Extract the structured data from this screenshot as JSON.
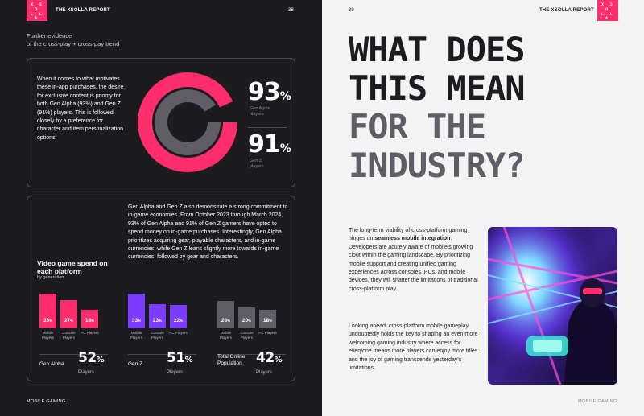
{
  "left_page": {
    "logo_letters": [
      "X",
      "S",
      "O",
      "L",
      "L",
      "A"
    ],
    "header_title": "THE XSOLLA REPORT",
    "page_number": "38",
    "section_heading_line1": "Further evidence",
    "section_heading_line2": "of the cross-play + cross-pay trend",
    "intro_text": "When it comes to what motivates these in-app purchases, the desire for exclusive content is priority for both Gen Alpha (93%) and Gen Z (91%) players. This is followed closely by a preference for character and item personalization options.",
    "stat_gen_alpha": {
      "value": "93",
      "unit": "%",
      "label_line1": "Gen Alpha",
      "label_line2": "players"
    },
    "stat_gen_z": {
      "value": "91",
      "unit": "%",
      "label_line1": "Gen Z",
      "label_line2": "players"
    },
    "mid_text": "Gen Alpha and Gen Z also demonstrate a strong commitment to in-game economies. From October 2023 through March 2024, 93% of Gen Alpha and 91% of Gen Z gamers have opted to spend money on in-game purchases. Interestingly, Gen Alpha prioritizes acquiring gear, playable characters, and in-game currencies, while Gen Z leans slightly more towards in-game currencies, followed by gear and characters.",
    "footer": "MOBILE GAMING"
  },
  "chart_data": [
    {
      "type": "pie",
      "values": [
        93,
        91
      ],
      "labels": [
        "Gen Alpha players",
        "Gen Z players"
      ],
      "colors": [
        "#ff2d6b",
        "#5f5e66"
      ]
    },
    {
      "type": "bar",
      "title": "Video game spend on each platform",
      "subtitle": "by generation",
      "categories": [
        "Mobile Players",
        "Console Players",
        "PC Players"
      ],
      "series": [
        {
          "name": "Gen Alpha",
          "values": [
            33,
            27,
            18
          ],
          "total": "52",
          "color": "#ff2d6b"
        },
        {
          "name": "Gen Z",
          "values": [
            33,
            23,
            22
          ],
          "total": "51",
          "color": "#7b3cff"
        },
        {
          "name": "Total Online Population",
          "values": [
            26,
            20,
            18
          ],
          "total": "42",
          "color": "#5f5e66"
        }
      ],
      "total_sub": "Players",
      "unit": "%"
    }
  ],
  "right_page": {
    "logo_letters": [
      "X",
      "S",
      "O",
      "L",
      "L",
      "A"
    ],
    "header_title": "THE XSOLLA REPORT",
    "page_number": "39",
    "headline_dark_1": "WHAT DOES",
    "headline_dark_2": "THIS MEAN",
    "headline_gray_1": "FOR THE",
    "headline_gray_2": "INDUSTRY?",
    "para1_a": "The long-term viability of cross-platform gaming hinges on ",
    "para1_bold": "seamless mobile integration",
    "para1_b": ". Developers are acutely aware of mobile's growing clout within the gaming landscape. By prioritizing mobile support and creating unified gaming experiences across consoles, PCs, and mobile devices, they will shatter the limitations of traditional cross-platform play.",
    "para2": "Looking ahead, cross-platform mobile gameplay undoubtedly holds the key to shaping an even more welcoming gaming industry where access for everyone means more players can enjoy more titles and the joy of gaming transcends yesterday's limitations.",
    "footer": "MOBILE GAMING"
  }
}
